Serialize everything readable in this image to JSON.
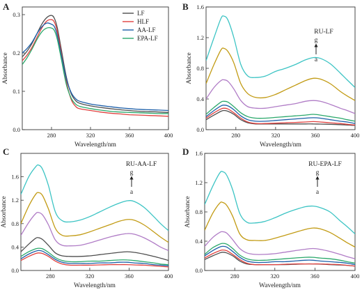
{
  "chart_data": [
    {
      "type": "line",
      "panel_label": "A",
      "xlabel": "Wavelength/nm",
      "ylabel": "Absorbance",
      "xlim": [
        250,
        400
      ],
      "ylim": [
        0,
        0.32
      ],
      "xticks": [
        280,
        320,
        360,
        400
      ],
      "yticks": [
        0.0,
        0.1,
        0.2,
        0.3
      ],
      "ytick_labels": [
        "0.0",
        "0.1",
        "0.2",
        "0.3"
      ],
      "legend": "top-right",
      "x": [
        250,
        255,
        260,
        265,
        270,
        275,
        280,
        283,
        286,
        290,
        295,
        300,
        305,
        310,
        320,
        330,
        340,
        350,
        360,
        370,
        380,
        390,
        400
      ],
      "series": [
        {
          "name": "LF",
          "color": "#4d4d4d",
          "values": [
            0.19,
            0.205,
            0.225,
            0.25,
            0.275,
            0.292,
            0.298,
            0.29,
            0.265,
            0.21,
            0.14,
            0.095,
            0.075,
            0.068,
            0.062,
            0.058,
            0.055,
            0.052,
            0.05,
            0.048,
            0.047,
            0.046,
            0.045
          ]
        },
        {
          "name": "HLF",
          "color": "#e0403e",
          "values": [
            0.18,
            0.195,
            0.215,
            0.24,
            0.265,
            0.283,
            0.287,
            0.28,
            0.255,
            0.2,
            0.128,
            0.08,
            0.06,
            0.054,
            0.05,
            0.046,
            0.043,
            0.041,
            0.039,
            0.038,
            0.037,
            0.036,
            0.035
          ]
        },
        {
          "name": "AA-LF",
          "color": "#1d5fa8",
          "values": [
            0.2,
            0.212,
            0.228,
            0.25,
            0.268,
            0.278,
            0.275,
            0.268,
            0.245,
            0.195,
            0.135,
            0.098,
            0.08,
            0.073,
            0.067,
            0.063,
            0.06,
            0.057,
            0.055,
            0.053,
            0.052,
            0.051,
            0.05
          ]
        },
        {
          "name": "EPA-LF",
          "color": "#2aa86b",
          "values": [
            0.17,
            0.188,
            0.21,
            0.235,
            0.255,
            0.265,
            0.265,
            0.258,
            0.235,
            0.185,
            0.12,
            0.083,
            0.066,
            0.06,
            0.055,
            0.051,
            0.048,
            0.046,
            0.045,
            0.044,
            0.043,
            0.042,
            0.042
          ]
        }
      ]
    },
    {
      "type": "line",
      "panel_label": "B",
      "inset_label": "RU-LF",
      "arrow_top_label": "g",
      "arrow_bottom_label": "a",
      "xlabel": "Wavelength/nm",
      "ylabel": "Absorbance",
      "xlim": [
        250,
        400
      ],
      "ylim": [
        0,
        1.6
      ],
      "xticks": [
        280,
        320,
        360,
        400
      ],
      "yticks": [
        0.0,
        0.4,
        0.8,
        1.2,
        1.6
      ],
      "ytick_labels": [
        "0.0",
        "0.4",
        "0.8",
        "1.2",
        "1.6"
      ],
      "x": [
        250,
        258,
        265,
        268,
        272,
        278,
        285,
        292,
        300,
        310,
        320,
        330,
        340,
        350,
        358,
        365,
        375,
        385,
        392,
        400
      ],
      "series": [
        {
          "color": "#4d4d4d",
          "values": [
            0.13,
            0.19,
            0.24,
            0.25,
            0.24,
            0.2,
            0.13,
            0.09,
            0.075,
            0.075,
            0.075,
            0.075,
            0.075,
            0.075,
            0.075,
            0.073,
            0.07,
            0.065,
            0.06,
            0.055
          ]
        },
        {
          "color": "#e0403e",
          "values": [
            0.15,
            0.22,
            0.27,
            0.28,
            0.27,
            0.22,
            0.15,
            0.1,
            0.08,
            0.08,
            0.085,
            0.09,
            0.095,
            0.1,
            0.105,
            0.1,
            0.09,
            0.08,
            0.07,
            0.06
          ]
        },
        {
          "color": "#1d5fa8",
          "values": [
            0.17,
            0.25,
            0.31,
            0.32,
            0.31,
            0.26,
            0.18,
            0.13,
            0.11,
            0.11,
            0.12,
            0.13,
            0.14,
            0.15,
            0.155,
            0.15,
            0.13,
            0.11,
            0.1,
            0.08
          ]
        },
        {
          "color": "#2aa86b",
          "values": [
            0.2,
            0.29,
            0.36,
            0.37,
            0.36,
            0.3,
            0.22,
            0.17,
            0.15,
            0.15,
            0.16,
            0.17,
            0.18,
            0.19,
            0.2,
            0.19,
            0.17,
            0.15,
            0.13,
            0.11
          ]
        },
        {
          "color": "#b07cc6",
          "values": [
            0.4,
            0.55,
            0.64,
            0.65,
            0.63,
            0.53,
            0.38,
            0.3,
            0.28,
            0.28,
            0.3,
            0.32,
            0.34,
            0.37,
            0.38,
            0.37,
            0.33,
            0.28,
            0.25,
            0.21
          ]
        },
        {
          "color": "#c29b14",
          "values": [
            0.6,
            0.85,
            1.04,
            1.06,
            1.02,
            0.87,
            0.6,
            0.47,
            0.42,
            0.42,
            0.46,
            0.52,
            0.58,
            0.64,
            0.67,
            0.66,
            0.6,
            0.5,
            0.44,
            0.38
          ]
        },
        {
          "color": "#3cc4c4",
          "values": [
            0.9,
            1.2,
            1.45,
            1.48,
            1.43,
            1.2,
            0.85,
            0.7,
            0.68,
            0.7,
            0.76,
            0.8,
            0.85,
            0.91,
            0.94,
            0.93,
            0.86,
            0.74,
            0.65,
            0.55
          ]
        }
      ]
    },
    {
      "type": "line",
      "panel_label": "C",
      "inset_label": "RU-AA-LF",
      "arrow_top_label": "g",
      "arrow_bottom_label": "a",
      "xlabel": "Wavelength/nm",
      "ylabel": "Absorbance",
      "xlim": [
        250,
        400
      ],
      "ylim": [
        0,
        2.0
      ],
      "xticks": [
        280,
        320,
        360,
        400
      ],
      "yticks": [
        0.0,
        0.4,
        0.8,
        1.2,
        1.6
      ],
      "ytick_labels": [
        "0.0",
        "0.4",
        "0.8",
        "1.2",
        "1.6"
      ],
      "x": [
        250,
        258,
        265,
        268,
        272,
        278,
        285,
        292,
        300,
        310,
        320,
        330,
        340,
        350,
        358,
        365,
        375,
        385,
        392,
        400
      ],
      "series": [
        {
          "color": "#4d4d4d",
          "values": [
            0.32,
            0.45,
            0.55,
            0.56,
            0.53,
            0.43,
            0.3,
            0.25,
            0.24,
            0.24,
            0.25,
            0.27,
            0.29,
            0.31,
            0.32,
            0.31,
            0.28,
            0.24,
            0.21,
            0.17
          ]
        },
        {
          "color": "#e0403e",
          "values": [
            0.17,
            0.24,
            0.29,
            0.3,
            0.29,
            0.24,
            0.16,
            0.11,
            0.09,
            0.09,
            0.09,
            0.095,
            0.1,
            0.1,
            0.1,
            0.095,
            0.09,
            0.08,
            0.07,
            0.06
          ]
        },
        {
          "color": "#1d5fa8",
          "values": [
            0.2,
            0.28,
            0.33,
            0.34,
            0.33,
            0.27,
            0.19,
            0.14,
            0.12,
            0.12,
            0.12,
            0.13,
            0.13,
            0.14,
            0.14,
            0.13,
            0.12,
            0.1,
            0.09,
            0.08
          ]
        },
        {
          "color": "#2aa86b",
          "values": [
            0.24,
            0.32,
            0.37,
            0.38,
            0.37,
            0.31,
            0.22,
            0.17,
            0.15,
            0.15,
            0.16,
            0.16,
            0.17,
            0.18,
            0.18,
            0.17,
            0.15,
            0.13,
            0.11,
            0.1
          ]
        },
        {
          "color": "#b07cc6",
          "values": [
            0.6,
            0.82,
            0.97,
            0.99,
            0.95,
            0.78,
            0.52,
            0.43,
            0.42,
            0.43,
            0.47,
            0.52,
            0.57,
            0.61,
            0.63,
            0.62,
            0.56,
            0.47,
            0.4,
            0.34
          ]
        },
        {
          "color": "#c29b14",
          "values": [
            0.8,
            1.1,
            1.3,
            1.33,
            1.28,
            1.05,
            0.72,
            0.6,
            0.59,
            0.61,
            0.66,
            0.72,
            0.78,
            0.84,
            0.87,
            0.86,
            0.78,
            0.66,
            0.57,
            0.48
          ]
        },
        {
          "color": "#3cc4c4",
          "values": [
            1.3,
            1.6,
            1.77,
            1.8,
            1.73,
            1.45,
            1.0,
            0.85,
            0.83,
            0.86,
            0.92,
            1.0,
            1.08,
            1.15,
            1.19,
            1.18,
            1.08,
            0.92,
            0.8,
            0.68
          ]
        }
      ]
    },
    {
      "type": "line",
      "panel_label": "D",
      "inset_label": "RU-EPA-LF",
      "arrow_top_label": "g",
      "arrow_bottom_label": "a",
      "xlabel": "Wavelength/nm",
      "ylabel": "Absorbance",
      "xlim": [
        250,
        400
      ],
      "ylim": [
        0,
        1.6
      ],
      "xticks": [
        280,
        320,
        360,
        400
      ],
      "yticks": [
        0.0,
        0.4,
        0.8,
        1.2,
        1.6
      ],
      "ytick_labels": [
        "0.0",
        "0.4",
        "0.8",
        "1.2",
        "1.6"
      ],
      "x": [
        250,
        258,
        265,
        268,
        272,
        278,
        285,
        292,
        300,
        310,
        320,
        330,
        340,
        350,
        358,
        365,
        375,
        385,
        392,
        400
      ],
      "series": [
        {
          "color": "#4d4d4d",
          "values": [
            0.15,
            0.2,
            0.24,
            0.25,
            0.24,
            0.2,
            0.13,
            0.09,
            0.08,
            0.08,
            0.08,
            0.08,
            0.085,
            0.09,
            0.09,
            0.088,
            0.08,
            0.075,
            0.07,
            0.06
          ]
        },
        {
          "color": "#e0403e",
          "values": [
            0.17,
            0.23,
            0.27,
            0.28,
            0.27,
            0.22,
            0.15,
            0.1,
            0.08,
            0.08,
            0.08,
            0.085,
            0.09,
            0.09,
            0.09,
            0.09,
            0.085,
            0.08,
            0.07,
            0.06
          ]
        },
        {
          "color": "#1d5fa8",
          "values": [
            0.2,
            0.27,
            0.32,
            0.33,
            0.32,
            0.26,
            0.18,
            0.13,
            0.11,
            0.11,
            0.12,
            0.12,
            0.13,
            0.14,
            0.14,
            0.13,
            0.12,
            0.11,
            0.1,
            0.08
          ]
        },
        {
          "color": "#2aa86b",
          "values": [
            0.22,
            0.31,
            0.36,
            0.37,
            0.36,
            0.3,
            0.21,
            0.16,
            0.14,
            0.14,
            0.15,
            0.16,
            0.17,
            0.18,
            0.18,
            0.17,
            0.16,
            0.14,
            0.12,
            0.1
          ]
        },
        {
          "color": "#b07cc6",
          "values": [
            0.33,
            0.45,
            0.52,
            0.53,
            0.51,
            0.42,
            0.3,
            0.24,
            0.22,
            0.22,
            0.23,
            0.25,
            0.27,
            0.29,
            0.3,
            0.29,
            0.26,
            0.22,
            0.19,
            0.16
          ]
        },
        {
          "color": "#c29b14",
          "values": [
            0.55,
            0.78,
            0.92,
            0.93,
            0.89,
            0.74,
            0.5,
            0.42,
            0.41,
            0.41,
            0.44,
            0.48,
            0.52,
            0.56,
            0.58,
            0.57,
            0.52,
            0.44,
            0.38,
            0.32
          ]
        },
        {
          "color": "#3cc4c4",
          "values": [
            0.9,
            1.15,
            1.33,
            1.35,
            1.3,
            1.1,
            0.78,
            0.66,
            0.65,
            0.67,
            0.72,
            0.78,
            0.83,
            0.87,
            0.88,
            0.86,
            0.8,
            0.68,
            0.6,
            0.5
          ]
        }
      ]
    }
  ]
}
